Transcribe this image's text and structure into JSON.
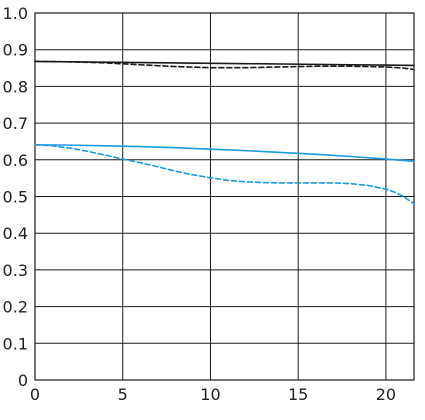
{
  "chart_data": {
    "type": "line",
    "title": "",
    "xlabel": "",
    "ylabel": "",
    "xlim": [
      0,
      21.6
    ],
    "ylim": [
      0,
      1.0
    ],
    "grid": true,
    "x_ticks": [
      0,
      5,
      10,
      15,
      20
    ],
    "x_tick_labels": [
      "0",
      "5",
      "10",
      "15",
      "20"
    ],
    "y_ticks": [
      0,
      0.1,
      0.2,
      0.3,
      0.4,
      0.5,
      0.6,
      0.7,
      0.8,
      0.9,
      1.0
    ],
    "y_tick_labels": [
      "0",
      "0.1",
      "0.2",
      "0.3",
      "0.4",
      "0.5",
      "0.6",
      "0.7",
      "0.8",
      "0.9",
      "1.0"
    ],
    "series": [
      {
        "color": "#1a1a1a",
        "dash": "solid",
        "x": [
          0,
          2,
          4,
          6,
          8,
          10,
          12,
          14,
          16,
          18,
          20,
          21.6
        ],
        "y": [
          0.868,
          0.867,
          0.866,
          0.865,
          0.864,
          0.863,
          0.862,
          0.861,
          0.86,
          0.859,
          0.858,
          0.857
        ]
      },
      {
        "color": "#1a1a1a",
        "dash": "dashed",
        "x": [
          0,
          2,
          4,
          6,
          8,
          10,
          12,
          14,
          16,
          18,
          20,
          21,
          21.6
        ],
        "y": [
          0.868,
          0.867,
          0.864,
          0.859,
          0.854,
          0.851,
          0.851,
          0.853,
          0.855,
          0.855,
          0.853,
          0.85,
          0.846
        ]
      },
      {
        "color": "#1a9ae0",
        "dash": "solid",
        "x": [
          0,
          2,
          4,
          6,
          8,
          10,
          12,
          14,
          16,
          18,
          20,
          21.6
        ],
        "y": [
          0.641,
          0.64,
          0.638,
          0.636,
          0.633,
          0.629,
          0.625,
          0.62,
          0.615,
          0.609,
          0.602,
          0.596
        ]
      },
      {
        "color": "#1a9ae0",
        "dash": "dashed",
        "x": [
          0,
          1,
          2,
          3,
          4,
          5,
          6,
          7,
          8,
          9,
          10,
          11,
          12,
          13,
          14,
          15,
          16,
          17,
          18,
          19,
          20,
          20.5,
          21,
          21.6
        ],
        "y": [
          0.641,
          0.638,
          0.632,
          0.623,
          0.613,
          0.602,
          0.592,
          0.581,
          0.569,
          0.559,
          0.551,
          0.544,
          0.54,
          0.538,
          0.537,
          0.537,
          0.537,
          0.537,
          0.535,
          0.53,
          0.52,
          0.512,
          0.5,
          0.48
        ]
      }
    ]
  }
}
